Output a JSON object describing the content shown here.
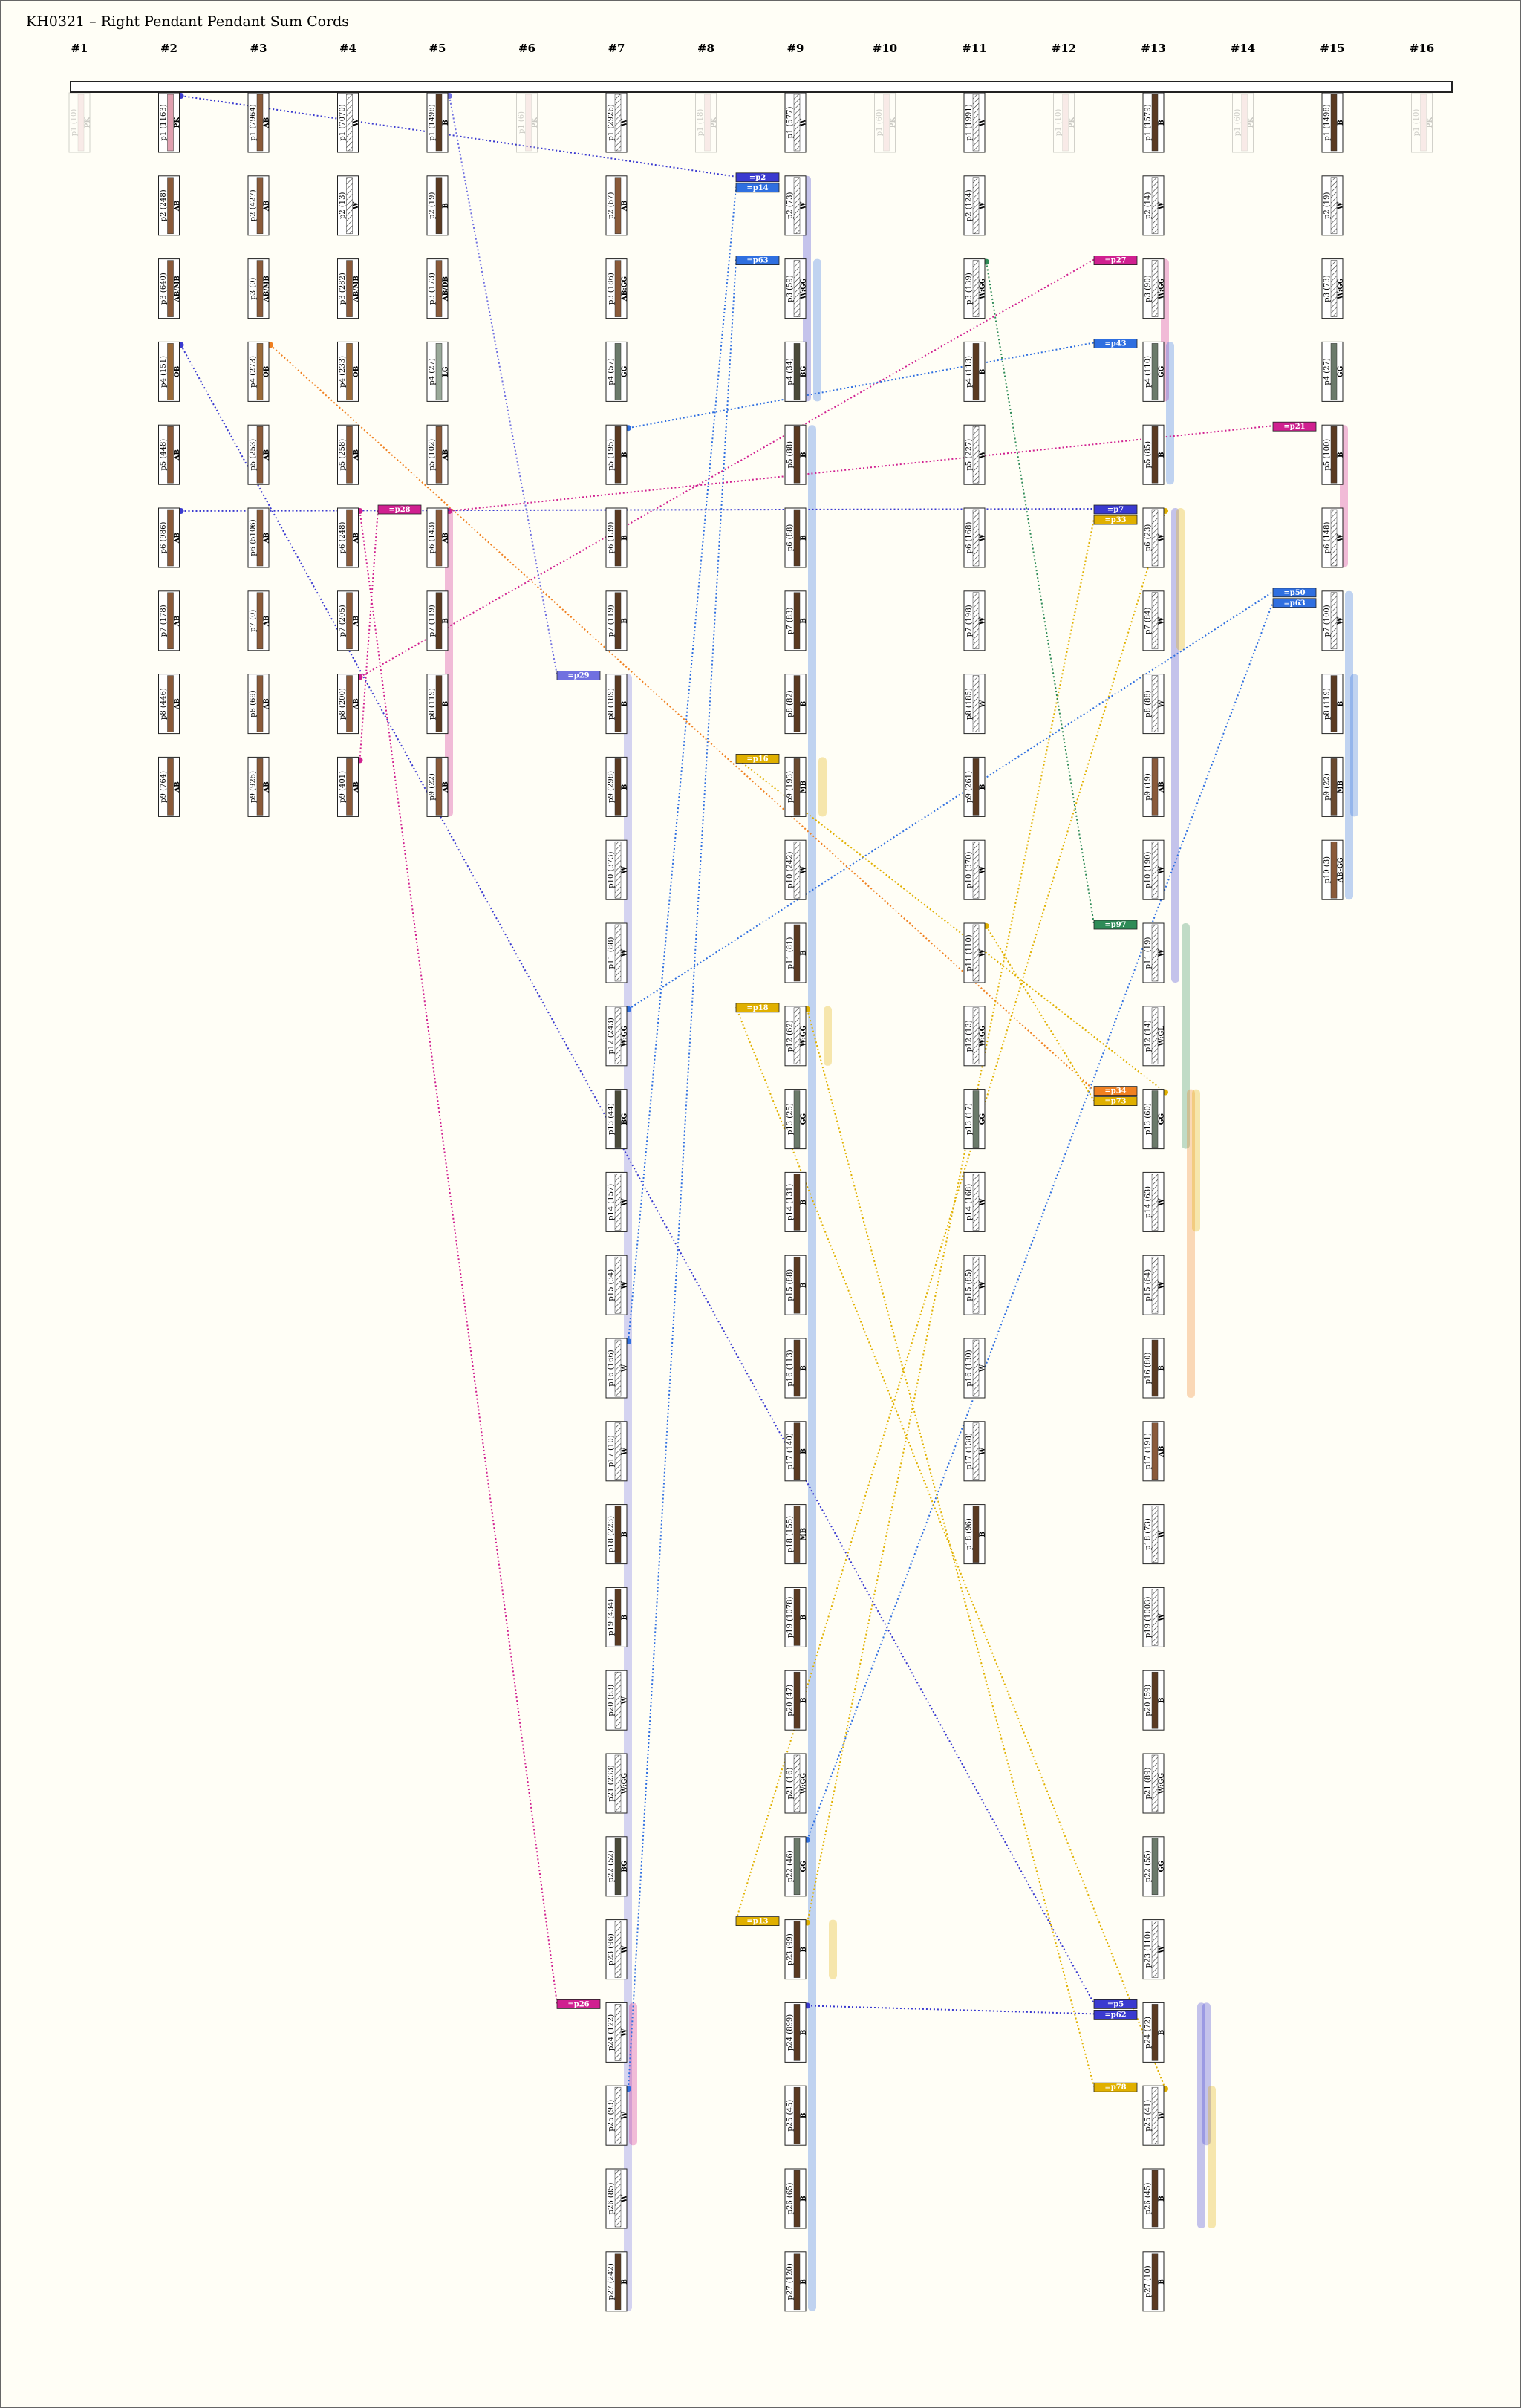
{
  "title": "KH0321 – Right Pendant Pendant Sum Cords",
  "columns": [
    {
      "label": "#1",
      "faded": true,
      "pendants": [
        {
          "name": "p1 (10)",
          "color": "PK"
        }
      ]
    },
    {
      "label": "#2",
      "pendants": [
        {
          "name": "p1 (1163)",
          "color": "PK"
        },
        {
          "name": "p2 (248)",
          "color": "AB"
        },
        {
          "name": "p3 (640)",
          "color": "AB/MB"
        },
        {
          "name": "p4 (151)",
          "color": "OB"
        },
        {
          "name": "p5 (448)",
          "color": "AB"
        },
        {
          "name": "p6 (986)",
          "color": "AB"
        },
        {
          "name": "p7 (178)",
          "color": "AB"
        },
        {
          "name": "p8 (446)",
          "color": "AB"
        },
        {
          "name": "p9 (764)",
          "color": "AB"
        }
      ]
    },
    {
      "label": "#3",
      "pendants": [
        {
          "name": "p1 (7964)",
          "color": "AB"
        },
        {
          "name": "p2 (427)",
          "color": "AB"
        },
        {
          "name": "p3 (0)",
          "color": "AB/MB"
        },
        {
          "name": "p4 (273)",
          "color": "OB"
        },
        {
          "name": "p5 (253)",
          "color": "AB"
        },
        {
          "name": "p6 (5106)",
          "color": "AB"
        },
        {
          "name": "p7 (0)",
          "color": "AB"
        },
        {
          "name": "p8 (69)",
          "color": "AB"
        },
        {
          "name": "p9 (925)",
          "color": "AB"
        }
      ]
    },
    {
      "label": "#4",
      "pendants": [
        {
          "name": "p1 (7070)",
          "color": "W"
        },
        {
          "name": "p2 (13)",
          "color": "W"
        },
        {
          "name": "p3 (282)",
          "color": "AB/MB"
        },
        {
          "name": "p4 (233)",
          "color": "OB"
        },
        {
          "name": "p5 (258)",
          "color": "AB"
        },
        {
          "name": "p6 (248)",
          "color": "AB"
        },
        {
          "name": "p7 (205)",
          "color": "AB"
        },
        {
          "name": "p8 (200)",
          "color": "AB"
        },
        {
          "name": "p9 (401)",
          "color": "AB"
        }
      ]
    },
    {
      "label": "#5",
      "pendants": [
        {
          "name": "p1 (1498)",
          "color": "B"
        },
        {
          "name": "p2 (19)",
          "color": "B"
        },
        {
          "name": "p3 (173)",
          "color": "AB/DB"
        },
        {
          "name": "p4 (27)",
          "color": "LG"
        },
        {
          "name": "p5 (102)",
          "color": "AB"
        },
        {
          "name": "p6 (143)",
          "color": "AB"
        },
        {
          "name": "p7 (119)",
          "color": "B"
        },
        {
          "name": "p8 (119)",
          "color": "B"
        },
        {
          "name": "p9 (22)",
          "color": "AB"
        }
      ]
    },
    {
      "label": "#6",
      "faded": true,
      "pendants": [
        {
          "name": "p1 (6)",
          "color": "PK"
        }
      ]
    },
    {
      "label": "#7",
      "pendants": [
        {
          "name": "p1 (2926)",
          "color": "W"
        },
        {
          "name": "p2 (67)",
          "color": "AB"
        },
        {
          "name": "p3 (186)",
          "color": "AB:GG"
        },
        {
          "name": "p4 (57)",
          "color": "GG"
        },
        {
          "name": "p5 (195)",
          "color": "B"
        },
        {
          "name": "p6 (139)",
          "color": "B"
        },
        {
          "name": "p7 (119)",
          "color": "B"
        },
        {
          "name": "p8 (189)",
          "color": "B"
        },
        {
          "name": "p9 (298)",
          "color": "B"
        },
        {
          "name": "p10 (373)",
          "color": "W"
        },
        {
          "name": "p11 (88)",
          "color": "W"
        },
        {
          "name": "p12 (243)",
          "color": "W:GG"
        },
        {
          "name": "p13 (44)",
          "color": "BG"
        },
        {
          "name": "p14 (157)",
          "color": "W"
        },
        {
          "name": "p15 (34)",
          "color": "W"
        },
        {
          "name": "p16 (166)",
          "color": "W"
        },
        {
          "name": "p17 (10)",
          "color": "W"
        },
        {
          "name": "p18 (223)",
          "color": "B"
        },
        {
          "name": "p19 (434)",
          "color": "B"
        },
        {
          "name": "p20 (83)",
          "color": "W"
        },
        {
          "name": "p21 (233)",
          "color": "W:GG"
        },
        {
          "name": "p22 (52)",
          "color": "BG"
        },
        {
          "name": "p23 (96)",
          "color": "W"
        },
        {
          "name": "p24 (122)",
          "color": "W"
        },
        {
          "name": "p25 (93)",
          "color": "W"
        },
        {
          "name": "p26 (85)",
          "color": "W"
        },
        {
          "name": "p27 (242)",
          "color": "B"
        }
      ]
    },
    {
      "label": "#8",
      "faded": true,
      "pendants": [
        {
          "name": "p1 (18)",
          "color": "PK"
        }
      ]
    },
    {
      "label": "#9",
      "pendants": [
        {
          "name": "p1 (577)",
          "color": "W"
        },
        {
          "name": "p2 (73)",
          "color": "W"
        },
        {
          "name": "p3 (59)",
          "color": "W:GG"
        },
        {
          "name": "p4 (34)",
          "color": "BG"
        },
        {
          "name": "p5 (88)",
          "color": "B"
        },
        {
          "name": "p6 (88)",
          "color": "B"
        },
        {
          "name": "p7 (83)",
          "color": "B"
        },
        {
          "name": "p8 (82)",
          "color": "B"
        },
        {
          "name": "p9 (193)",
          "color": "MB"
        },
        {
          "name": "p10 (242)",
          "color": "W"
        },
        {
          "name": "p11 (81)",
          "color": "B"
        },
        {
          "name": "p12 (62)",
          "color": "W:GG"
        },
        {
          "name": "p13 (25)",
          "color": "GG"
        },
        {
          "name": "p14 (131)",
          "color": "B"
        },
        {
          "name": "p15 (88)",
          "color": "B"
        },
        {
          "name": "p16 (113)",
          "color": "B"
        },
        {
          "name": "p17 (140)",
          "color": "B"
        },
        {
          "name": "p18 (155)",
          "color": "MB"
        },
        {
          "name": "p19 (1078)",
          "color": "B"
        },
        {
          "name": "p20 (47)",
          "color": "B"
        },
        {
          "name": "p21 (16)",
          "color": "W:GG"
        },
        {
          "name": "p22 (46)",
          "color": "GG"
        },
        {
          "name": "p23 (99)",
          "color": "B"
        },
        {
          "name": "p24 (899)",
          "color": "B"
        },
        {
          "name": "p25 (45)",
          "color": "B"
        },
        {
          "name": "p26 (65)",
          "color": "B"
        },
        {
          "name": "p27 (120)",
          "color": "B"
        }
      ]
    },
    {
      "label": "#10",
      "faded": true,
      "pendants": [
        {
          "name": "p1 (60)",
          "color": "PK"
        }
      ]
    },
    {
      "label": "#11",
      "pendants": [
        {
          "name": "p1 (1991)",
          "color": "W"
        },
        {
          "name": "p2 (124)",
          "color": "W"
        },
        {
          "name": "p3 (139)",
          "color": "W:GG"
        },
        {
          "name": "p4 (113)",
          "color": "B"
        },
        {
          "name": "p5 (227)",
          "color": "W"
        },
        {
          "name": "p6 (168)",
          "color": "W"
        },
        {
          "name": "p7 (198)",
          "color": "W"
        },
        {
          "name": "p8 (185)",
          "color": "W"
        },
        {
          "name": "p9 (261)",
          "color": "B"
        },
        {
          "name": "p10 (370)",
          "color": "W"
        },
        {
          "name": "p11 (110)",
          "color": "W"
        },
        {
          "name": "p12 (13)",
          "color": "W:GG"
        },
        {
          "name": "p13 (17)",
          "color": "GG"
        },
        {
          "name": "p14 (168)",
          "color": "W"
        },
        {
          "name": "p15 (85)",
          "color": "W"
        },
        {
          "name": "p16 (130)",
          "color": "W"
        },
        {
          "name": "p17 (138)",
          "color": "W"
        },
        {
          "name": "p18 (96)",
          "color": "B"
        }
      ]
    },
    {
      "label": "#12",
      "faded": true,
      "pendants": [
        {
          "name": "p1 (10)",
          "color": "PK"
        }
      ]
    },
    {
      "label": "#13",
      "pendants": [
        {
          "name": "p1 (1579)",
          "color": "B"
        },
        {
          "name": "p2 (14)",
          "color": "W"
        },
        {
          "name": "p3 (90)",
          "color": "W:GG"
        },
        {
          "name": "p4 (110)",
          "color": "GG"
        },
        {
          "name": "p5 (85)",
          "color": "B"
        },
        {
          "name": "p6 (23)",
          "color": "W"
        },
        {
          "name": "p7 (84)",
          "color": "W"
        },
        {
          "name": "p8 (88)",
          "color": "W"
        },
        {
          "name": "p9 (19)",
          "color": "AB"
        },
        {
          "name": "p10 (190)",
          "color": "W"
        },
        {
          "name": "p11 (19)",
          "color": "W"
        },
        {
          "name": "p12 (14)",
          "color": "W:GL"
        },
        {
          "name": "p13 (60)",
          "color": "GG"
        },
        {
          "name": "p14 (63)",
          "color": "W"
        },
        {
          "name": "p15 (64)",
          "color": "W"
        },
        {
          "name": "p16 (80)",
          "color": "B"
        },
        {
          "name": "p17 (191)",
          "color": "AB"
        },
        {
          "name": "p18 (73)",
          "color": "W"
        },
        {
          "name": "p19 (1003)",
          "color": "W"
        },
        {
          "name": "p20 (59)",
          "color": "B"
        },
        {
          "name": "p21 (89)",
          "color": "W:GG"
        },
        {
          "name": "p22 (55)",
          "color": "GG"
        },
        {
          "name": "p23 (110)",
          "color": "W"
        },
        {
          "name": "p24 (72)",
          "color": "B"
        },
        {
          "name": "p25 (41)",
          "color": "W"
        },
        {
          "name": "p26 (45)",
          "color": "B"
        },
        {
          "name": "p27 (10)",
          "color": "B"
        }
      ]
    },
    {
      "label": "#14",
      "faded": true,
      "pendants": [
        {
          "name": "p1 (60)",
          "color": "PK"
        }
      ]
    },
    {
      "label": "#15",
      "pendants": [
        {
          "name": "p1 (1498)",
          "color": "B"
        },
        {
          "name": "p2 (19)",
          "color": "W"
        },
        {
          "name": "p3 (73)",
          "color": "W:GG"
        },
        {
          "name": "p4 (27)",
          "color": "GG"
        },
        {
          "name": "p5 (100)",
          "color": "B"
        },
        {
          "name": "p6 (148)",
          "color": "W"
        },
        {
          "name": "p7 (100)",
          "color": "W"
        },
        {
          "name": "p8 (119)",
          "color": "B"
        },
        {
          "name": "p9 (22)",
          "color": "MB"
        },
        {
          "name": "p10 (3)",
          "color": "AB-GG"
        }
      ]
    },
    {
      "label": "#16",
      "faded": true,
      "pendants": [
        {
          "name": "p1 (10)",
          "color": "PK"
        }
      ]
    }
  ],
  "sums": [
    {
      "label": "=p2",
      "color": "#3a3ad0",
      "at": [
        8,
        1
      ],
      "src": [
        1,
        0
      ],
      "group": [
        1,
        3
      ]
    },
    {
      "label": "=p14",
      "color": "#2f6fe0",
      "at": [
        8,
        1
      ],
      "src": [
        6,
        15
      ],
      "group": [
        4,
        26
      ]
    },
    {
      "label": "=p63",
      "color": "#2f6fe0",
      "at": [
        8,
        2
      ],
      "src": [
        6,
        24
      ],
      "group": [
        2,
        3
      ]
    },
    {
      "label": "=p27",
      "color": "#d02090",
      "at": [
        12,
        2
      ],
      "src": [
        3,
        7
      ],
      "group": [
        2,
        3
      ]
    },
    {
      "label": "=p43",
      "color": "#2f6fe0",
      "at": [
        12,
        3
      ],
      "src": [
        6,
        4
      ],
      "group": [
        3,
        4
      ]
    },
    {
      "label": "=p21",
      "color": "#d02090",
      "at": [
        14,
        4
      ],
      "src": [
        4,
        5
      ],
      "group": [
        4,
        5
      ]
    },
    {
      "label": "=p28",
      "color": "#d02090",
      "at": [
        4,
        5
      ],
      "src": [
        3,
        8
      ],
      "group": [
        5,
        8
      ]
    },
    {
      "label": "=p7",
      "color": "#3a3ad0",
      "at": [
        12,
        5
      ],
      "src": [
        1,
        5
      ],
      "group": [
        5,
        10
      ]
    },
    {
      "label": "=p33",
      "color": "#e0b000",
      "at": [
        12,
        5
      ],
      "src": [
        8,
        22
      ],
      "group": [
        5,
        6
      ]
    },
    {
      "label": "=p50",
      "color": "#2f6fe0",
      "at": [
        14,
        6
      ],
      "src": [
        6,
        11
      ],
      "group": [
        6,
        9
      ]
    },
    {
      "label": "=p63",
      "color": "#2f6fe0",
      "at": [
        14,
        6
      ],
      "src": [
        8,
        21
      ],
      "group": [
        7,
        8
      ]
    },
    {
      "label": "=p29",
      "color": "#7070e0",
      "at": [
        6,
        7
      ],
      "src": [
        4,
        0
      ],
      "group": [
        7,
        26
      ]
    },
    {
      "label": "=p16",
      "color": "#e0b000",
      "at": [
        8,
        8
      ],
      "src": [
        12,
        12
      ],
      "group": [
        8,
        8
      ]
    },
    {
      "label": "=p97",
      "color": "#2e8b57",
      "at": [
        12,
        10
      ],
      "src": [
        10,
        2
      ],
      "group": [
        10,
        12
      ]
    },
    {
      "label": "=p18",
      "color": "#e0b000",
      "at": [
        8,
        11
      ],
      "src": [
        12,
        24
      ],
      "group": [
        11,
        11
      ]
    },
    {
      "label": "=p34",
      "color": "#f08020",
      "at": [
        12,
        12
      ],
      "src": [
        2,
        3
      ],
      "group": [
        12,
        15
      ]
    },
    {
      "label": "=p73",
      "color": "#e0b000",
      "at": [
        12,
        12
      ],
      "src": [
        10,
        10
      ],
      "group": [
        12,
        13
      ]
    },
    {
      "label": "=p13",
      "color": "#e0b000",
      "at": [
        8,
        22
      ],
      "src": [
        12,
        5
      ],
      "group": [
        22,
        22
      ]
    },
    {
      "label": "=p26",
      "color": "#d02090",
      "at": [
        6,
        23
      ],
      "src": [
        3,
        5
      ],
      "group": [
        23,
        24
      ]
    },
    {
      "label": "=p5",
      "color": "#3a3ad0",
      "at": [
        12,
        23
      ],
      "src": [
        1,
        3
      ],
      "group": [
        23,
        25
      ]
    },
    {
      "label": "=p62",
      "color": "#3a3ad0",
      "at": [
        12,
        23
      ],
      "src": [
        8,
        23
      ],
      "group": [
        23,
        24
      ]
    },
    {
      "label": "=p78",
      "color": "#e0b000",
      "at": [
        12,
        24
      ],
      "src": [
        8,
        11
      ],
      "group": [
        24,
        25
      ]
    }
  ]
}
